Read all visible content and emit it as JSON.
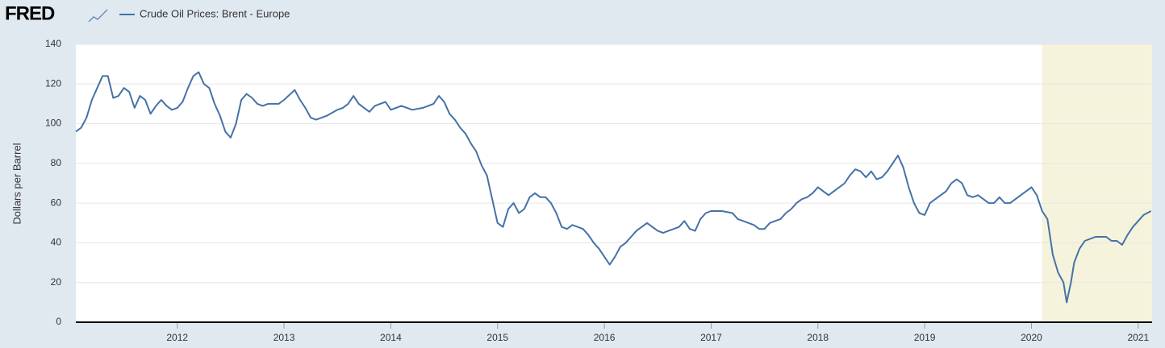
{
  "header": {
    "logo": "FRED"
  },
  "chart_data": {
    "type": "line",
    "series": [
      {
        "name": "Crude Oil Prices: Brent - Europe",
        "color": "#4572a7",
        "x": [
          2011.05,
          2011.1,
          2011.15,
          2011.2,
          2011.25,
          2011.3,
          2011.35,
          2011.4,
          2011.45,
          2011.5,
          2011.55,
          2011.6,
          2011.65,
          2011.7,
          2011.75,
          2011.8,
          2011.85,
          2011.9,
          2011.95,
          2012.0,
          2012.05,
          2012.1,
          2012.15,
          2012.2,
          2012.25,
          2012.3,
          2012.35,
          2012.4,
          2012.45,
          2012.5,
          2012.55,
          2012.6,
          2012.65,
          2012.7,
          2012.75,
          2012.8,
          2012.85,
          2012.9,
          2012.95,
          2013.0,
          2013.1,
          2013.15,
          2013.2,
          2013.25,
          2013.3,
          2013.35,
          2013.4,
          2013.5,
          2013.55,
          2013.6,
          2013.65,
          2013.7,
          2013.75,
          2013.8,
          2013.85,
          2013.9,
          2013.95,
          2014.0,
          2014.1,
          2014.2,
          2014.3,
          2014.4,
          2014.45,
          2014.5,
          2014.55,
          2014.6,
          2014.65,
          2014.7,
          2014.75,
          2014.8,
          2014.85,
          2014.9,
          2014.95,
          2015.0,
          2015.05,
          2015.1,
          2015.15,
          2015.2,
          2015.25,
          2015.3,
          2015.35,
          2015.4,
          2015.45,
          2015.5,
          2015.55,
          2015.6,
          2015.65,
          2015.7,
          2015.75,
          2015.8,
          2015.85,
          2015.9,
          2015.95,
          2016.0,
          2016.05,
          2016.1,
          2016.15,
          2016.2,
          2016.25,
          2016.3,
          2016.35,
          2016.4,
          2016.45,
          2016.5,
          2016.55,
          2016.6,
          2016.65,
          2016.7,
          2016.75,
          2016.8,
          2016.85,
          2016.9,
          2016.95,
          2017.0,
          2017.1,
          2017.2,
          2017.25,
          2017.3,
          2017.4,
          2017.45,
          2017.5,
          2017.55,
          2017.6,
          2017.65,
          2017.7,
          2017.75,
          2017.8,
          2017.85,
          2017.9,
          2017.95,
          2018.0,
          2018.05,
          2018.1,
          2018.2,
          2018.25,
          2018.3,
          2018.35,
          2018.4,
          2018.45,
          2018.5,
          2018.55,
          2018.6,
          2018.65,
          2018.7,
          2018.75,
          2018.8,
          2018.85,
          2018.9,
          2018.95,
          2019.0,
          2019.05,
          2019.1,
          2019.2,
          2019.25,
          2019.3,
          2019.35,
          2019.4,
          2019.45,
          2019.5,
          2019.6,
          2019.65,
          2019.7,
          2019.75,
          2019.8,
          2019.85,
          2019.9,
          2019.95,
          2020.0,
          2020.05,
          2020.1,
          2020.15,
          2020.2,
          2020.25,
          2020.3,
          2020.33,
          2020.37,
          2020.4,
          2020.45,
          2020.5,
          2020.6,
          2020.7,
          2020.75,
          2020.8,
          2020.85,
          2020.9,
          2020.95,
          2021.0,
          2021.05,
          2021.12
        ],
        "values": [
          96,
          98,
          103,
          112,
          118,
          124,
          124,
          113,
          114,
          118,
          116,
          108,
          114,
          112,
          105,
          109,
          112,
          109,
          107,
          108,
          111,
          118,
          124,
          126,
          120,
          118,
          110,
          104,
          96,
          93,
          100,
          112,
          115,
          113,
          110,
          109,
          110,
          110,
          110,
          112,
          117,
          112,
          108,
          103,
          102,
          103,
          104,
          107,
          108,
          110,
          114,
          110,
          108,
          106,
          109,
          110,
          111,
          107,
          109,
          107,
          108,
          110,
          114,
          111,
          105,
          102,
          98,
          95,
          90,
          86,
          79,
          74,
          62,
          50,
          48,
          57,
          60,
          55,
          57,
          63,
          65,
          63,
          63,
          60,
          55,
          48,
          47,
          49,
          48,
          47,
          44,
          40,
          37,
          33,
          29,
          33,
          38,
          40,
          43,
          46,
          48,
          50,
          48,
          46,
          45,
          46,
          47,
          48,
          51,
          47,
          46,
          52,
          55,
          56,
          56,
          55,
          52,
          51,
          49,
          47,
          47,
          50,
          51,
          52,
          55,
          57,
          60,
          62,
          63,
          65,
          68,
          66,
          64,
          68,
          70,
          74,
          77,
          76,
          73,
          76,
          72,
          73,
          76,
          80,
          84,
          78,
          68,
          60,
          55,
          54,
          60,
          62,
          66,
          70,
          72,
          70,
          64,
          63,
          64,
          60,
          60,
          63,
          60,
          60,
          62,
          64,
          66,
          68,
          64,
          56,
          52,
          34,
          25,
          20,
          10,
          20,
          30,
          37,
          41,
          43,
          43,
          41,
          41,
          39,
          44,
          48,
          51,
          54,
          56
        ]
      }
    ],
    "recession": [
      2020.1,
      2021.13
    ],
    "ylabel": "Dollars per Barrel",
    "xlim": [
      2011.05,
      2021.13
    ],
    "ylim": [
      0,
      140
    ],
    "xticks": [
      2012,
      2013,
      2014,
      2015,
      2016,
      2017,
      2018,
      2019,
      2020,
      2021
    ],
    "yticks": [
      0,
      20,
      40,
      60,
      80,
      100,
      120,
      140
    ],
    "grid": true
  }
}
